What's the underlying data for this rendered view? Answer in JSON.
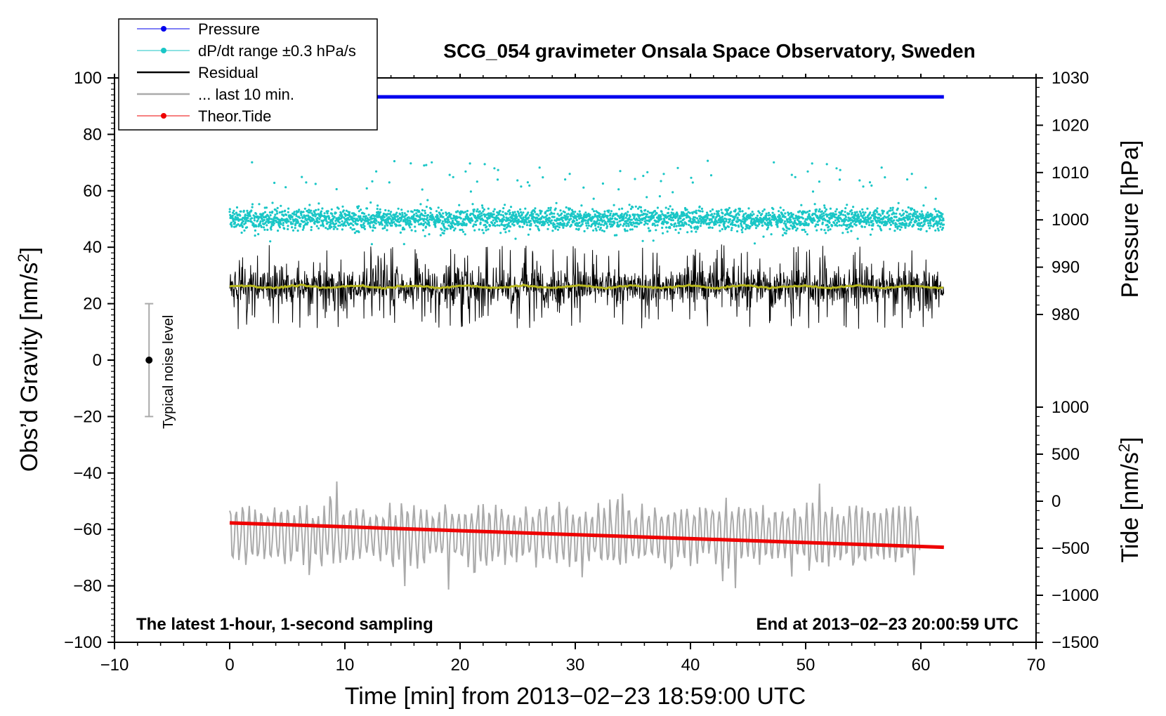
{
  "chart_data": {
    "type": "line",
    "title": "SCG_054 gravimeter Onsala Space Observatory, Sweden",
    "xlabel": "Time [min] from 2013−02−23 18:59:00 UTC",
    "ylabel": "Obs’d Gravity [nm/s²]",
    "ylabel_base": "Obs’d Gravity [nm/s",
    "ylabel_sup": "2",
    "ylabel_end": "]",
    "y2label": "Pressure [hPa]",
    "y3label": "Tide [nm/s²]",
    "y3label_base": "Tide [nm/s",
    "y3label_sup": "2",
    "y3label_end": "]",
    "xlim": [
      -10,
      70
    ],
    "ylim": [
      -100,
      100
    ],
    "x_ticks": [
      "−10",
      "0",
      "10",
      "20",
      "30",
      "40",
      "50",
      "60",
      "70"
    ],
    "y_ticks": [
      "−100",
      "−80",
      "−60",
      "−40",
      "−20",
      "0",
      "20",
      "40",
      "60",
      "80",
      "100"
    ],
    "pressure_axis": {
      "range": [
        970,
        1030
      ],
      "ticks": [
        "980",
        "990",
        "1000",
        "1010",
        "1020",
        "1030"
      ]
    },
    "tide_axis": {
      "range": [
        -1500,
        1000
      ],
      "ticks": [
        "−1500",
        "−1000",
        "−500",
        "0",
        "500",
        "1000"
      ]
    },
    "grid": false,
    "legend_position": "top-left",
    "legend": [
      {
        "label": "Pressure",
        "color": "#0000ee",
        "marker": true
      },
      {
        "label": "dP/dt range ±0.3 hPa/s",
        "color": "#19c6c6",
        "marker": true
      },
      {
        "label": "Residual",
        "color": "#000000",
        "marker": false
      },
      {
        "label": "... last 10 min.",
        "color": "#aaaaaa",
        "marker": false
      },
      {
        "label": "Theor.Tide",
        "color": "#ee0000",
        "marker": true
      }
    ],
    "series": [
      {
        "name": "Pressure",
        "axis": "pressure",
        "color": "#0000ee",
        "x": [
          0,
          62
        ],
        "values": [
          1026,
          1026
        ]
      },
      {
        "name": "dP/dt range ±0.3 hPa/s",
        "axis": "left",
        "color": "#19c6c6",
        "x_range": [
          0,
          62
        ],
        "center": 50,
        "spread": 3,
        "outlier_max": 79
      },
      {
        "name": "Residual",
        "axis": "left",
        "color": "#000000",
        "x_range": [
          0,
          62
        ],
        "center": 26,
        "min": 4,
        "max": 46
      },
      {
        "name": "Residual mean",
        "axis": "left",
        "color": "#b8b81e",
        "x_range": [
          0,
          62
        ],
        "center": 26
      },
      {
        "name": "... last 10 min.",
        "axis": "left",
        "color": "#aaaaaa",
        "x_range": [
          0,
          60
        ],
        "center": -62,
        "min": -84,
        "max": -43
      },
      {
        "name": "Theor.Tide",
        "axis": "tide",
        "color": "#ee0000",
        "x": [
          0,
          62
        ],
        "values": [
          -230,
          -490
        ]
      }
    ],
    "noise_bar": {
      "x": -7,
      "center": 0,
      "low": -20,
      "high": 20,
      "label": "Typical noise level"
    },
    "notes": {
      "bottom_left": "The latest 1-hour, 1-second sampling",
      "bottom_right": "End at 2013−02−23 20:00:59 UTC"
    }
  },
  "colors": {
    "pressure": "#0000ee",
    "dpdt": "#19c6c6",
    "residual": "#000000",
    "residual_mean": "#b8b81e",
    "last10": "#aaaaaa",
    "tide": "#ee0000"
  }
}
